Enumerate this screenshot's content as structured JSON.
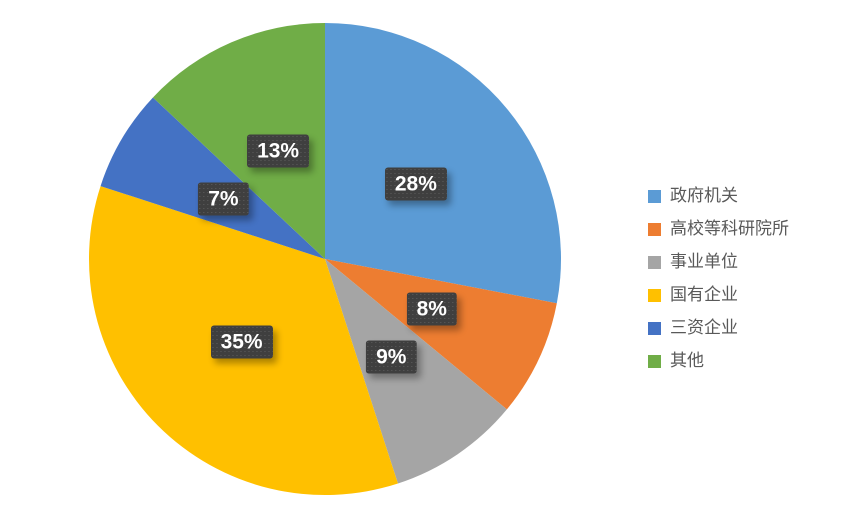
{
  "chart_data": {
    "type": "pie",
    "title": "",
    "legend_position": "right",
    "start_angle_deg": 0,
    "direction": "clockwise",
    "slices": [
      {
        "key": "government-agencies",
        "label": "政府机关",
        "value": 28,
        "color": "#5B9BD5"
      },
      {
        "key": "universities-research-institutes",
        "label": "高校等科研院所",
        "value": 8,
        "color": "#ED7D31"
      },
      {
        "key": "public-institutions",
        "label": "事业单位",
        "value": 9,
        "color": "#A5A5A5"
      },
      {
        "key": "state-owned-enterprises",
        "label": "国有企业",
        "value": 35,
        "color": "#FFC000"
      },
      {
        "key": "foreign-invested-enterprises",
        "label": "三资企业",
        "value": 7,
        "color": "#4472C4"
      },
      {
        "key": "other",
        "label": "其他",
        "value": 13,
        "color": "#70AD47"
      }
    ],
    "data_label_format": "{value}%",
    "data_label_badge_color": "#3F3F3F",
    "data_label_text_color": "#FFFFFF",
    "legend_text_color": "#595959",
    "background_color": "#FFFFFF"
  }
}
